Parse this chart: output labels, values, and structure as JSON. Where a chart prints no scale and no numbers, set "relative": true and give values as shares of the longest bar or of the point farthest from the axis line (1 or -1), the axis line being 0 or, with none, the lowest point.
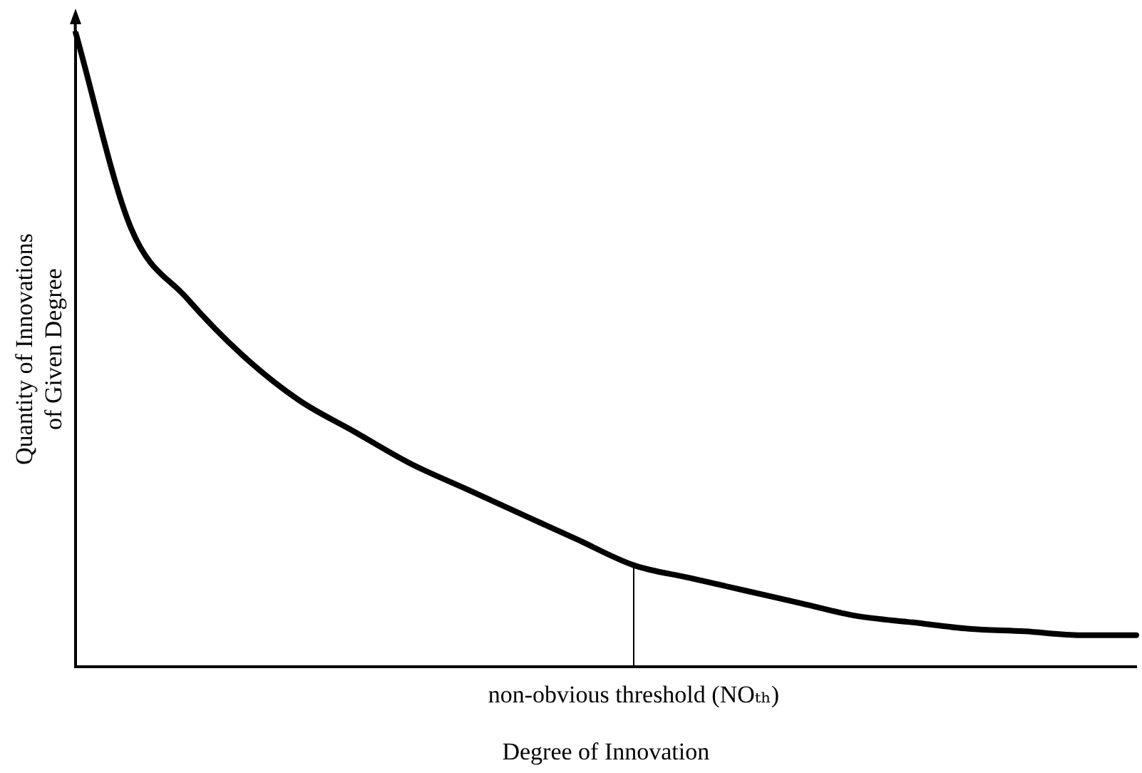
{
  "chart_data": {
    "type": "line",
    "relative": true,
    "xlabel": "Degree of Innovation",
    "ylabel": "Quantity of Innovations of Given Degree",
    "categories": [
      null,
      null,
      null,
      null,
      null,
      null,
      null,
      null,
      null,
      null,
      null,
      null,
      null,
      null,
      null,
      null,
      null,
      null,
      null,
      null
    ],
    "series": [
      {
        "color": "#000000",
        "values": [
          1.0,
          0.69,
          0.58,
          0.49,
          0.42,
          0.37,
          0.32,
          0.28,
          0.24,
          0.2,
          0.16,
          0.14,
          0.12,
          0.1,
          0.08,
          0.07,
          0.06,
          0.056,
          0.05,
          0.05
        ]
      }
    ],
    "annotations": [
      "non-obvious threshold (NOₜₕ)"
    ],
    "grid": false,
    "legend": false,
    "marker": "none",
    "line_style": "solid"
  }
}
